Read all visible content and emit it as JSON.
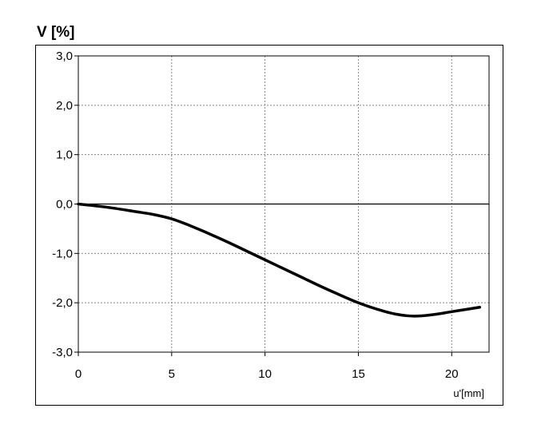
{
  "chart_data": {
    "type": "line",
    "title": "V [%]",
    "xlabel": "u'[mm]",
    "ylabel": "",
    "xlim": [
      0,
      22
    ],
    "ylim": [
      -3.0,
      3.0
    ],
    "x_ticks": [
      "0",
      "5",
      "10",
      "15",
      "20"
    ],
    "x_tick_values": [
      0,
      5,
      10,
      15,
      20
    ],
    "y_ticks": [
      "3,0",
      "2,0",
      "1,0",
      "0,0",
      "-1,0",
      "-2,0",
      "-3,0"
    ],
    "y_tick_values": [
      3,
      2,
      1,
      0,
      -1,
      -2,
      -3
    ],
    "grid": true,
    "series": [
      {
        "x": [
          0,
          1,
          2,
          3,
          4,
          5,
          6,
          7,
          8,
          9,
          10,
          11,
          12,
          13,
          14,
          15,
          16,
          17,
          18,
          19,
          20,
          21,
          21.5
        ],
        "values": [
          0.0,
          -0.04,
          -0.09,
          -0.15,
          -0.21,
          -0.3,
          -0.44,
          -0.6,
          -0.77,
          -0.95,
          -1.13,
          -1.31,
          -1.49,
          -1.67,
          -1.84,
          -2.0,
          -2.13,
          -2.23,
          -2.27,
          -2.24,
          -2.18,
          -2.12,
          -2.09
        ],
        "color": "#000000"
      }
    ]
  }
}
